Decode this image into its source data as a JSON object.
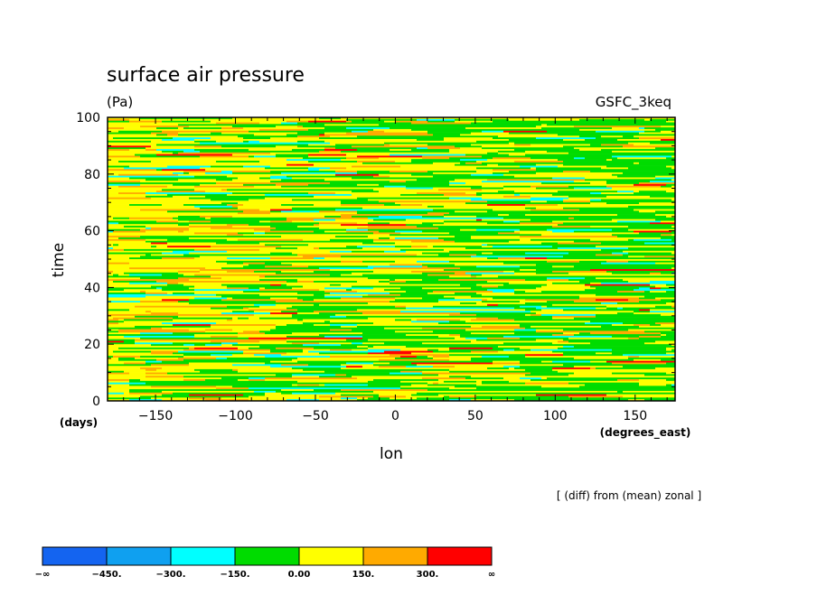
{
  "chart_data": {
    "type": "heatmap",
    "title": "surface air pressure",
    "units": "(Pa)",
    "dataset": "GSFC_3keq",
    "xlabel": "lon",
    "ylabel": "time",
    "x_units": "(degrees_east)",
    "y_units": "(days)",
    "note": "[ (diff) from (mean) zonal ]",
    "xlim": [
      -180,
      175
    ],
    "ylim": [
      0,
      100
    ],
    "x_ticks": [
      -150,
      -100,
      -50,
      0,
      50,
      100,
      150
    ],
    "x_tick_labels": [
      "−150",
      "−100",
      "−50",
      "0",
      "50",
      "100",
      "150"
    ],
    "y_ticks": [
      0,
      20,
      40,
      60,
      80,
      100
    ],
    "y_tick_labels": [
      "0",
      "20",
      "40",
      "60",
      "80",
      "100"
    ],
    "colorbar": {
      "levels_labels": [
        "−∞",
        "−450.",
        "−300.",
        "−150.",
        "0.00",
        "150.",
        "300.",
        "∞"
      ],
      "colors": [
        "#1464f0",
        "#0fa0f0",
        "#00ffff",
        "#00dc00",
        "#ffff00",
        "#ffaa00",
        "#ff0000"
      ]
    },
    "field_description_dominant_bins": [
      "-150 to 0",
      "0 to 150",
      "150 to 300"
    ]
  }
}
